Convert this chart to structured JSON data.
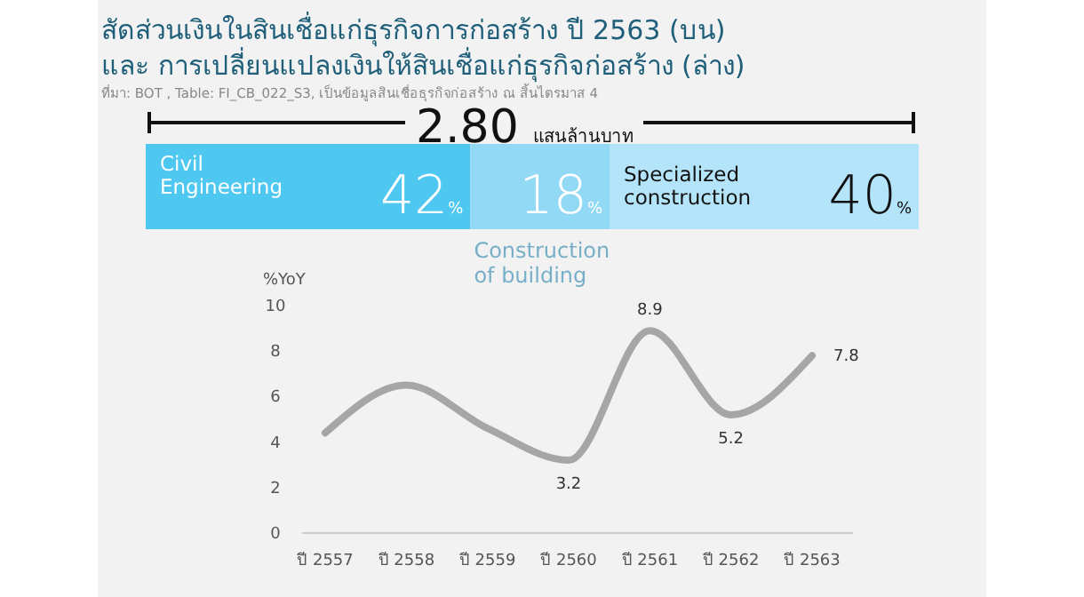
{
  "chart_data": [
    {
      "type": "bar",
      "orientation": "horizontal",
      "stacked": true,
      "title": "สัดส่วนเงินในสินเชื่อแก่ธุรกิจการก่อสร้าง ปี 2563 (บน)\nและ การเปลี่ยนแปลงเงินให้สินเชื่อแก่ธุรกิจก่อสร้าง (ล่าง)",
      "annotations": [
        "ที่มา: BOT , Table: FI_CB_022_S3, เป็นข้อมูลสินเชื่อธุรกิจก่อสร้าง ณ สิ้นไตรมาส 4",
        "2.80 แสนล้านบาท"
      ],
      "categories": [
        null
      ],
      "series": [
        {
          "name": "Civil Engineering",
          "color": "#4ec8f0",
          "values": [
            42
          ],
          "value_labels": [
            "42%"
          ]
        },
        {
          "name": "Construction of building",
          "color": "#92d9f6",
          "values": [
            18
          ],
          "value_labels": [
            "18%"
          ]
        },
        {
          "name": "Specialized construction",
          "color": "#b4e4f9",
          "values": [
            40
          ],
          "value_labels": [
            "40%"
          ]
        }
      ]
    },
    {
      "type": "line",
      "ylabel": "%YoY",
      "categories": [
        "ปี 2557",
        "ปี 2558",
        "ปี 2559",
        "ปี 2560",
        "ปี 2561",
        "ปี 2562",
        "ปี 2563"
      ],
      "ylim": [
        0,
        10
      ],
      "yticks": [
        0,
        2,
        4,
        6,
        8,
        10
      ],
      "grid": false,
      "marker": "none",
      "line_style": "solid",
      "series": [
        {
          "color": "#a6a6a6",
          "values": [
            4.4,
            6.5,
            4.6,
            3.2,
            8.9,
            5.2,
            7.8
          ],
          "value_labels": [
            null,
            null,
            null,
            "3.2",
            "8.9",
            "5.2",
            "7.8"
          ]
        }
      ]
    }
  ]
}
